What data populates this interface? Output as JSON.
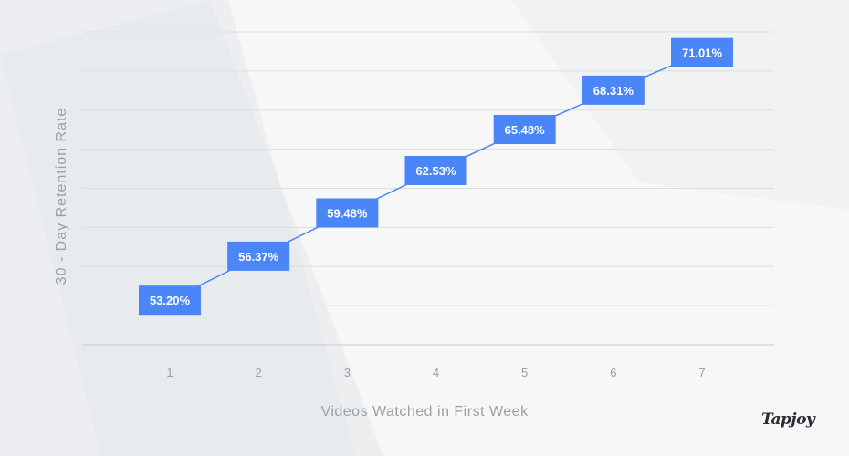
{
  "chart_data": {
    "type": "line",
    "x": [
      "1",
      "2",
      "3",
      "4",
      "5",
      "6",
      "7"
    ],
    "values": [
      53.2,
      56.37,
      59.48,
      62.53,
      65.48,
      68.31,
      71.01
    ],
    "data_labels": [
      "53.20%",
      "56.37%",
      "59.48%",
      "62.53%",
      "65.48%",
      "68.31%",
      "71.01%"
    ],
    "xlabel": "Videos Watched in First Week",
    "ylabel": "30 - Day Retention Rate",
    "ylim": [
      50,
      72.5
    ],
    "grid": true,
    "colors": {
      "marker": "#4a86f7",
      "line": "#4a86f7",
      "grid": "#dcdde0",
      "tick": "#9aa0a8"
    }
  },
  "brand": {
    "logo_text": "Tapjoy"
  }
}
